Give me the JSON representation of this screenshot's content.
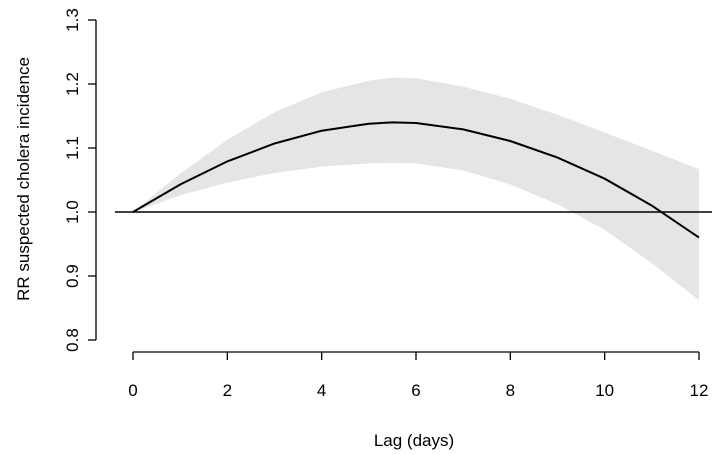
{
  "chart_data": {
    "type": "line",
    "title": "",
    "xlabel": "Lag (days)",
    "ylabel": "RR suspected cholera incidence",
    "xlim": [
      0,
      12
    ],
    "ylim": [
      0.8,
      1.3
    ],
    "x_ticks": [
      0,
      2,
      4,
      6,
      8,
      10,
      12
    ],
    "y_ticks": [
      "0.8",
      "0.9",
      "1.0",
      "1.1",
      "1.2",
      "1.3"
    ],
    "reference_line_y": 1.0,
    "grid": false,
    "series": [
      {
        "x": [
          0,
          1,
          2,
          3,
          4,
          5,
          5.5,
          6,
          7,
          8,
          9,
          10,
          11,
          12
        ],
        "y": [
          1.0,
          1.043,
          1.079,
          1.107,
          1.127,
          1.138,
          1.14,
          1.139,
          1.129,
          1.111,
          1.085,
          1.052,
          1.01,
          0.96
        ],
        "lower": [
          1.0,
          1.026,
          1.046,
          1.061,
          1.071,
          1.076,
          1.077,
          1.076,
          1.065,
          1.043,
          1.012,
          0.972,
          0.92,
          0.862
        ],
        "upper": [
          1.0,
          1.06,
          1.113,
          1.156,
          1.187,
          1.205,
          1.21,
          1.209,
          1.196,
          1.177,
          1.152,
          1.124,
          1.096,
          1.067
        ]
      }
    ],
    "colors": {
      "line": "#000000",
      "ci_band": "#e5e5e5",
      "reference": "#000000"
    }
  }
}
